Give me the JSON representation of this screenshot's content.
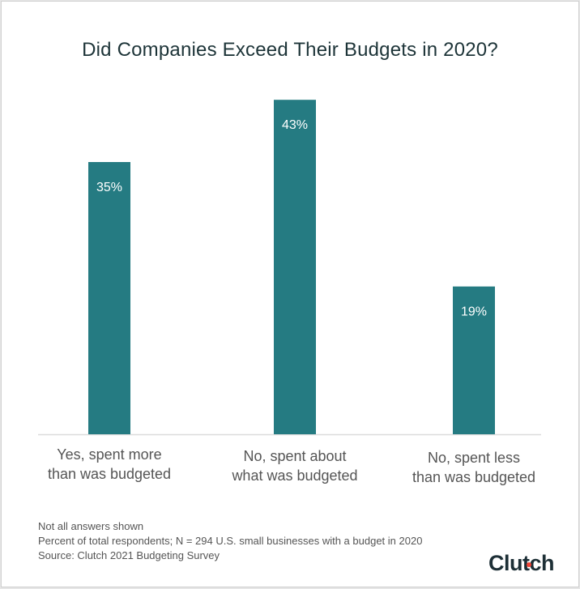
{
  "chart_data": {
    "type": "bar",
    "title": "Did Companies Exceed Their Budgets in 2020?",
    "categories": [
      "Yes, spent more than was budgeted",
      "No, spent about what was budgeted",
      "No, spent less than was budgeted"
    ],
    "category_lines": [
      [
        "Yes, spent more",
        "than was budgeted"
      ],
      [
        "No, spent about",
        "what was budgeted"
      ],
      [
        "No, spent less",
        "than was budgeted"
      ]
    ],
    "values": [
      35,
      43,
      19
    ],
    "data_labels": [
      "35%",
      "43%",
      "19%"
    ],
    "xlabel": "",
    "ylabel": "",
    "ylim": [
      0,
      45
    ],
    "grid": false,
    "bar_color": "#257b82"
  },
  "notes": [
    "Not all answers shown",
    "Percent of total respondents; N = 294 U.S. small businesses with a budget in 2020",
    "Source: Clutch 2021 Budgeting Survey"
  ],
  "logo": {
    "text": "Clutch",
    "dot_color": "#ef4335"
  }
}
